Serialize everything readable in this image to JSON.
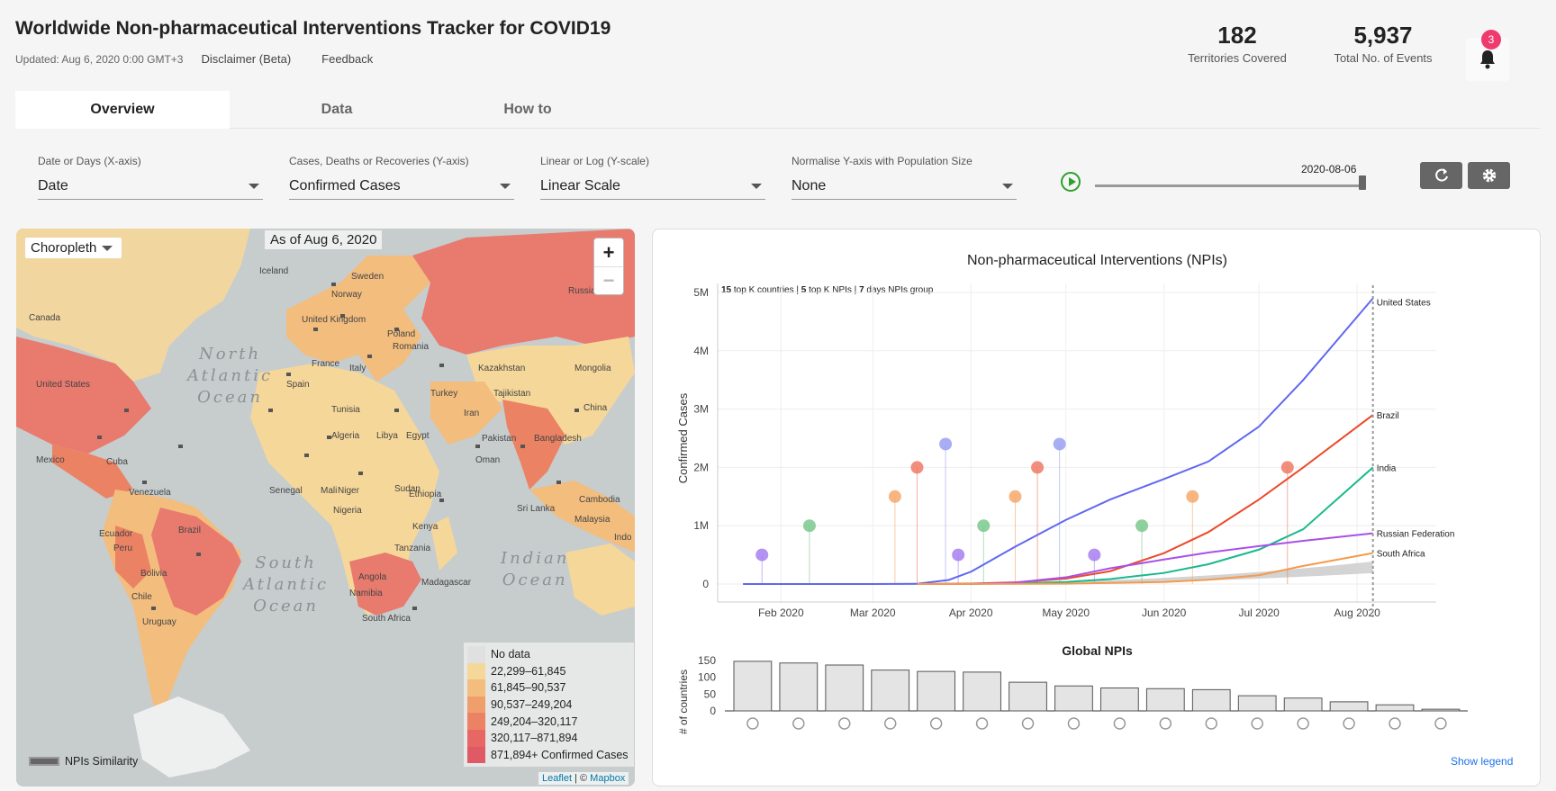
{
  "header": {
    "title": "Worldwide Non-pharmaceutical Interventions Tracker for COVID19",
    "updated": "Updated: Aug 6, 2020 0:00 GMT+3",
    "disclaimer": "Disclaimer (Beta)",
    "feedback": "Feedback"
  },
  "stats": {
    "territories": {
      "value": "182",
      "label": "Territories Covered"
    },
    "events": {
      "value": "5,937",
      "label": "Total No. of Events"
    },
    "notifications": "3"
  },
  "tabs": [
    {
      "label": "Overview",
      "active": true
    },
    {
      "label": "Data",
      "active": false
    },
    {
      "label": "How to",
      "active": false
    }
  ],
  "controls": [
    {
      "label": "Date or Days (X-axis)",
      "value": "Date"
    },
    {
      "label": "Cases, Deaths or Recoveries (Y-axis)",
      "value": "Confirmed Cases"
    },
    {
      "label": "Linear or Log (Y-scale)",
      "value": "Linear Scale"
    },
    {
      "label": "Normalise Y-axis with Population Size",
      "value": "None"
    }
  ],
  "slider": {
    "date": "2020-08-06",
    "position": 1.0
  },
  "map": {
    "mode": "Choropleth",
    "as_of": "As of Aug 6, 2020",
    "zoom_in": "+",
    "zoom_out": "−",
    "oceans": [
      {
        "name": "North Atlantic Ocean",
        "lines": [
          "North",
          "Atlantic",
          "Ocean"
        ]
      },
      {
        "name": "South Atlantic Ocean",
        "lines": [
          "South",
          "Atlantic",
          "Ocean"
        ]
      },
      {
        "name": "Indian Ocean",
        "lines": [
          "Indian",
          "Ocean"
        ]
      }
    ],
    "country_labels": [
      "Iceland",
      "Sweden",
      "Norway",
      "Russia",
      "Canada",
      "United Kingdom",
      "France",
      "Poland",
      "Romania",
      "Spain",
      "Italy",
      "Turkey",
      "Kazakhstan",
      "Mongolia",
      "United States",
      "Tunisia",
      "Tajikistan",
      "Iran",
      "China",
      "Algeria",
      "Libya",
      "Egypt",
      "Pakistan",
      "Bangladesh",
      "Mexico",
      "Cuba",
      "Oman",
      "Senegal",
      "Mali",
      "Niger",
      "Sudan",
      "Ethiopia",
      "Cambodia",
      "Venezuela",
      "Nigeria",
      "Sri Lanka",
      "Malaysia",
      "Ecuador",
      "Kenya",
      "Indo",
      "Peru",
      "Brazil",
      "Tanzania",
      "Bolivia",
      "Angola",
      "Namibia",
      "Madagascar",
      "Chile",
      "South Africa",
      "Uruguay"
    ],
    "legend": [
      {
        "label": "No data",
        "color": "#e0e0e0"
      },
      {
        "label": "22,299–61,845",
        "color": "#f6d79a"
      },
      {
        "label": "61,845–90,537",
        "color": "#f3bd7e"
      },
      {
        "label": "90,537–249,204",
        "color": "#f19e6d"
      },
      {
        "label": "249,204–320,117",
        "color": "#ec8264"
      },
      {
        "label": "320,117–871,894",
        "color": "#e76765"
      },
      {
        "label": "871,894+ Confirmed Cases",
        "color": "#e05a66"
      }
    ],
    "npis_similarity": "NPIs Similarity",
    "attribution_leaflet": "Leaflet",
    "attribution_sep": " | © ",
    "attribution_mapbox": "Mapbox"
  },
  "chart_panel": {
    "title": "Non-pharmaceutical Interventions (NPIs)",
    "subtitle_parts": [
      "15",
      " top K countries | ",
      "5",
      " top K NPIs | ",
      "7",
      " days NPIs group"
    ],
    "show_legend": "Show legend"
  },
  "chart_data": [
    {
      "type": "line",
      "title": "Non-pharmaceutical Interventions (NPIs)",
      "ylabel": "Confirmed Cases",
      "xlabel": "",
      "x_ticks": [
        "Feb 2020",
        "Mar 2020",
        "Apr 2020",
        "May 2020",
        "Jun 2020",
        "Jul 2020",
        "Aug 2020"
      ],
      "y_ticks": [
        "0",
        "1M",
        "2M",
        "3M",
        "4M",
        "5M"
      ],
      "ylim": [
        0,
        5000000
      ],
      "x_range": [
        "2020-01-12",
        "2020-08-26"
      ],
      "series": [
        {
          "name": "United States",
          "color": "#6068f0",
          "x": [
            "2020-01-20",
            "2020-02-01",
            "2020-03-01",
            "2020-03-15",
            "2020-03-25",
            "2020-04-01",
            "2020-04-15",
            "2020-05-01",
            "2020-05-15",
            "2020-06-01",
            "2020-06-15",
            "2020-07-01",
            "2020-07-15",
            "2020-08-06"
          ],
          "values": [
            1,
            8,
            75,
            3500,
            70000,
            210000,
            640000,
            1100000,
            1450000,
            1800000,
            2100000,
            2700000,
            3500000,
            4900000
          ]
        },
        {
          "name": "Brazil",
          "color": "#ec4a2a",
          "x": [
            "2020-03-15",
            "2020-04-01",
            "2020-04-15",
            "2020-05-01",
            "2020-05-15",
            "2020-06-01",
            "2020-06-15",
            "2020-07-01",
            "2020-07-15",
            "2020-08-06"
          ],
          "values": [
            200,
            6800,
            28000,
            92000,
            220000,
            530000,
            890000,
            1450000,
            2000000,
            2900000
          ]
        },
        {
          "name": "India",
          "color": "#19b98c",
          "x": [
            "2020-03-15",
            "2020-04-01",
            "2020-04-15",
            "2020-05-01",
            "2020-05-15",
            "2020-06-01",
            "2020-06-15",
            "2020-07-01",
            "2020-07-15",
            "2020-08-06"
          ],
          "values": [
            100,
            1800,
            12000,
            35000,
            85000,
            190000,
            340000,
            590000,
            940000,
            2000000
          ]
        },
        {
          "name": "Russian Federation",
          "color": "#a950e8",
          "x": [
            "2020-03-15",
            "2020-04-01",
            "2020-04-15",
            "2020-05-01",
            "2020-05-15",
            "2020-06-01",
            "2020-06-15",
            "2020-07-01",
            "2020-07-15",
            "2020-08-06"
          ],
          "values": [
            60,
            2800,
            25000,
            115000,
            270000,
            420000,
            540000,
            650000,
            740000,
            870000
          ]
        },
        {
          "name": "South Africa",
          "color": "#f59a4e",
          "x": [
            "2020-03-15",
            "2020-04-01",
            "2020-05-01",
            "2020-06-01",
            "2020-06-15",
            "2020-07-01",
            "2020-07-15",
            "2020-08-06"
          ],
          "values": [
            60,
            1400,
            5600,
            34000,
            73000,
            150000,
            310000,
            530000
          ]
        }
      ],
      "other_series_color": "#d3d3d3",
      "npi_marker_levels": [
        500000,
        1000000,
        1500000,
        2000000,
        2400000
      ]
    },
    {
      "type": "bar",
      "title": "Global NPIs",
      "ylabel": "# of countries",
      "y_ticks": [
        "0",
        "50",
        "100",
        "150"
      ],
      "ylim": [
        0,
        160
      ],
      "categories": [
        "npi-1",
        "npi-2",
        "npi-3",
        "npi-4",
        "npi-5",
        "npi-6",
        "npi-7",
        "npi-8",
        "npi-9",
        "npi-10",
        "npi-11",
        "npi-12",
        "npi-13",
        "npi-14",
        "npi-15",
        "npi-16"
      ],
      "values": [
        147,
        142,
        136,
        121,
        117,
        115,
        85,
        74,
        68,
        66,
        63,
        45,
        38,
        27,
        18,
        5
      ]
    }
  ],
  "icons": [
    "bell-icon",
    "play-icon",
    "refresh-icon",
    "gear-icon",
    "caret-down-icon"
  ],
  "colors": {
    "accent": "#1a73e8",
    "play": "#2ca02c",
    "badge": "#ef3a6e"
  }
}
